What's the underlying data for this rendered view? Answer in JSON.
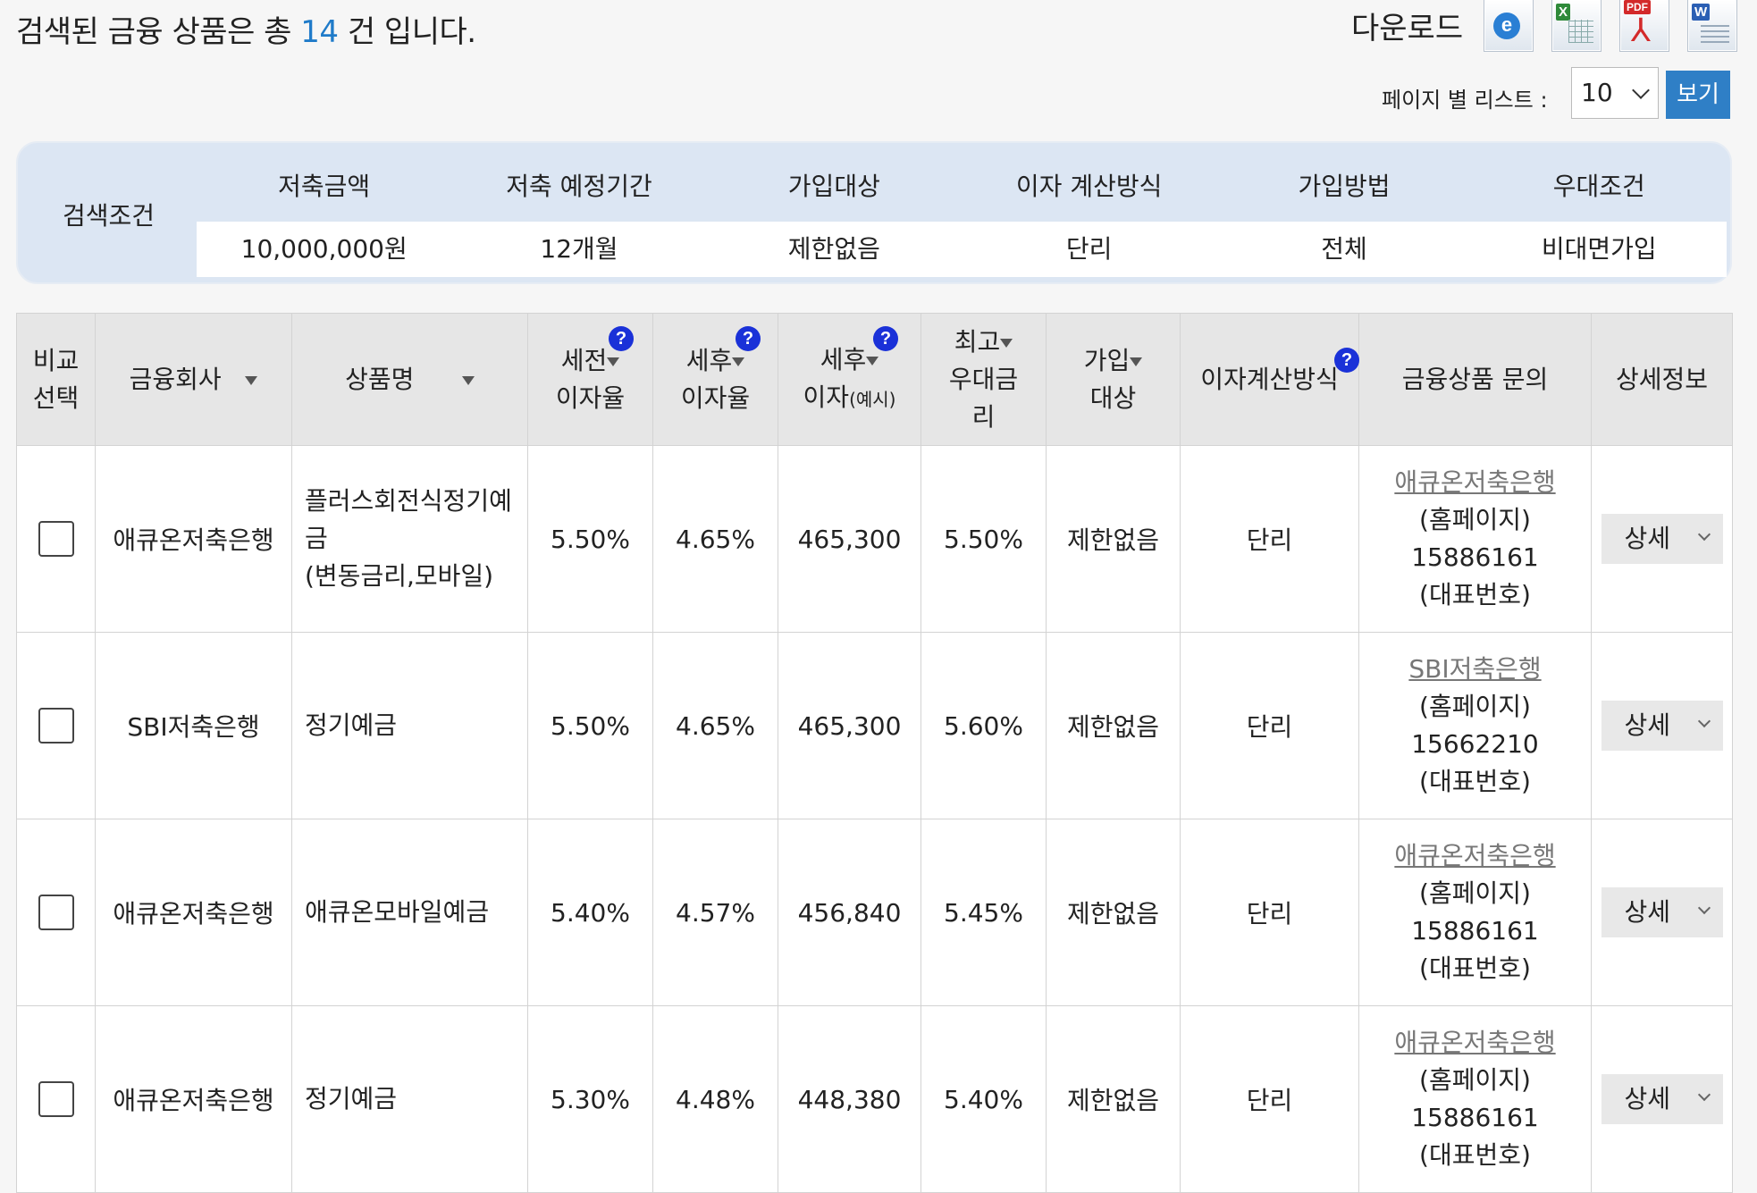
{
  "header": {
    "result_prefix": "검색된 금융 상품은 총",
    "result_count": "14",
    "result_suffix": "건 입니다.",
    "download_label": "다운로드",
    "download_icons": [
      "ie-icon",
      "excel-icon",
      "pdf-icon",
      "word-icon"
    ],
    "per_page_label": "페이지 별 리스트 :",
    "per_page_value": "10",
    "view_button": "보기"
  },
  "conditions": {
    "label": "검색조건",
    "headers": [
      "저축금액",
      "저축 예정기간",
      "가입대상",
      "이자 계산방식",
      "가입방법",
      "우대조건"
    ],
    "values": [
      "10,000,000원",
      "12개월",
      "제한없음",
      "단리",
      "전체",
      "비대면가입"
    ]
  },
  "table": {
    "headers": {
      "compare_1": "비교",
      "compare_2": "선택",
      "company": "금융회사",
      "product": "상품명",
      "pretax_1": "세전",
      "pretax_2": "이자율",
      "aftertax_1": "세후",
      "aftertax_2": "이자율",
      "aftertax_int_1": "세후",
      "aftertax_int_2": "이자",
      "aftertax_int_small": "(예시)",
      "max_1": "최고",
      "max_2": "우대금",
      "max_3": "리",
      "target_1": "가입",
      "target_2": "대상",
      "method": "이자계산방식",
      "inquiry": "금융상품 문의",
      "detail": "상세정보",
      "help_glyph": "?"
    },
    "rows": [
      {
        "company": "애큐온저축은행",
        "product_1": "플러스회전식정기예금",
        "product_2": "(변동금리,모바일)",
        "pretax": "5.50%",
        "aftertax": "4.65%",
        "interest": "465,300",
        "max": "5.50%",
        "target": "제한없음",
        "method": "단리",
        "inq_link": "애큐온저축은행",
        "inq_home": "(홈페이지)",
        "inq_phone": "15886161",
        "inq_rep": "(대표번호)",
        "detail": "상세"
      },
      {
        "company": "SBI저축은행",
        "product_1": "정기예금",
        "product_2": "",
        "pretax": "5.50%",
        "aftertax": "4.65%",
        "interest": "465,300",
        "max": "5.60%",
        "target": "제한없음",
        "method": "단리",
        "inq_link": "SBI저축은행",
        "inq_home": "(홈페이지)",
        "inq_phone": "15662210",
        "inq_rep": "(대표번호)",
        "detail": "상세"
      },
      {
        "company": "애큐온저축은행",
        "product_1": "애큐온모바일예금",
        "product_2": "",
        "pretax": "5.40%",
        "aftertax": "4.57%",
        "interest": "456,840",
        "max": "5.45%",
        "target": "제한없음",
        "method": "단리",
        "inq_link": "애큐온저축은행",
        "inq_home": "(홈페이지)",
        "inq_phone": "15886161",
        "inq_rep": "(대표번호)",
        "detail": "상세"
      },
      {
        "company": "애큐온저축은행",
        "product_1": "정기예금",
        "product_2": "",
        "pretax": "5.30%",
        "aftertax": "4.48%",
        "interest": "448,380",
        "max": "5.40%",
        "target": "제한없음",
        "method": "단리",
        "inq_link": "애큐온저축은행",
        "inq_home": "(홈페이지)",
        "inq_phone": "15886161",
        "inq_rep": "(대표번호)",
        "detail": "상세"
      }
    ]
  },
  "colors": {
    "accent_count": "#1f7bc9",
    "view_button": "#2f7fc6",
    "condition_box": "#dce6f3",
    "help_badge": "#1a31d8"
  }
}
